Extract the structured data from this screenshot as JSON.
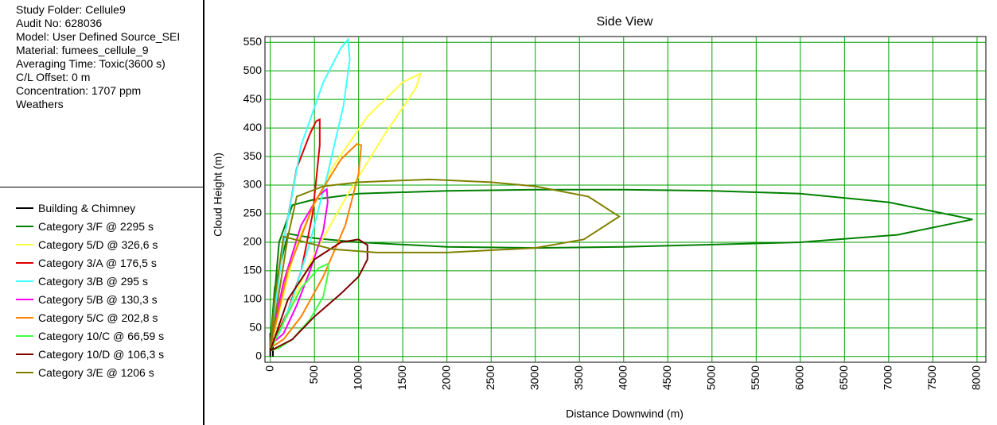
{
  "info": [
    "Study Folder: Cellule9",
    "Audit No: 628036",
    "Model: User Defined Source_SEI",
    "Material: fumees_cellule_9",
    "Averaging Time: Toxic(3600 s)",
    "C/L Offset: 0 m",
    "Concentration: 1707 ppm",
    "Weathers"
  ],
  "chart_data": {
    "type": "line",
    "title": "Side View",
    "x_label": "Distance Downwind (m)",
    "y_label": "Cloud Height (m)",
    "xlim": [
      -60,
      8100
    ],
    "ylim": [
      -10,
      560
    ],
    "xticks": [
      0,
      500,
      1000,
      1500,
      2000,
      2500,
      3000,
      3500,
      4000,
      4500,
      5000,
      5500,
      6000,
      6500,
      7000,
      7500,
      8000
    ],
    "yticks": [
      0,
      50,
      100,
      150,
      200,
      250,
      300,
      350,
      400,
      450,
      500,
      550
    ],
    "grid": true,
    "grid_color": "#00a000",
    "series": [
      {
        "name": "Building & Chimney",
        "color": "#000000",
        "x": [
          0,
          0,
          30,
          30
        ],
        "values": [
          0,
          40,
          40,
          0
        ]
      },
      {
        "name": "Category 3/F @ 2295 s",
        "color": "#008000",
        "x": [
          0,
          100,
          250,
          500,
          1000,
          2000,
          3000,
          4000,
          5000,
          6000,
          7000,
          7950,
          7100,
          6000,
          5000,
          4000,
          3000,
          2000,
          1000,
          500,
          200,
          50,
          0
        ],
        "values": [
          20,
          200,
          265,
          275,
          285,
          290,
          292,
          292,
          290,
          285,
          270,
          240,
          213,
          200,
          196,
          192,
          190,
          192,
          200,
          207,
          215,
          120,
          20
        ]
      },
      {
        "name": "Category 5/D @ 326,6 s",
        "color": "#ffff40",
        "x": [
          0,
          300,
          700,
          1100,
          1500,
          1700,
          1650,
          1300,
          900,
          500,
          200,
          0
        ],
        "values": [
          15,
          200,
          330,
          420,
          480,
          495,
          470,
          390,
          290,
          180,
          80,
          15
        ]
      },
      {
        "name": "Category 3/A @ 176,5 s",
        "color": "#e00000",
        "x": [
          0,
          150,
          300,
          450,
          520,
          560,
          560,
          480,
          350,
          200,
          80,
          0
        ],
        "values": [
          20,
          200,
          330,
          390,
          412,
          415,
          370,
          250,
          150,
          80,
          40,
          20
        ]
      },
      {
        "name": "Category 3/B @ 295 s",
        "color": "#40ffff",
        "x": [
          0,
          150,
          350,
          600,
          800,
          880,
          900,
          830,
          650,
          450,
          250,
          100,
          0
        ],
        "values": [
          20,
          200,
          370,
          480,
          540,
          555,
          520,
          440,
          320,
          200,
          100,
          40,
          20
        ]
      },
      {
        "name": "Category 5/B @ 130,3 s",
        "color": "#ff00ff",
        "x": [
          0,
          150,
          350,
          550,
          640,
          650,
          600,
          450,
          300,
          150,
          0
        ],
        "values": [
          20,
          130,
          230,
          282,
          293,
          270,
          220,
          150,
          90,
          40,
          20
        ]
      },
      {
        "name": "Category 5/C @ 202,8 s",
        "color": "#ff8000",
        "x": [
          0,
          200,
          500,
          800,
          980,
          1030,
          1000,
          850,
          600,
          350,
          150,
          0
        ],
        "values": [
          15,
          150,
          270,
          345,
          372,
          370,
          320,
          230,
          140,
          70,
          30,
          15
        ]
      },
      {
        "name": "Category 10/C @ 66,59 s",
        "color": "#40ff40",
        "x": [
          0,
          150,
          350,
          550,
          650,
          660,
          600,
          450,
          250,
          100,
          0
        ],
        "values": [
          10,
          60,
          120,
          155,
          162,
          150,
          105,
          65,
          30,
          15,
          10
        ]
      },
      {
        "name": "Category 10/D @ 106,3 s",
        "color": "#800000",
        "x": [
          0,
          200,
          500,
          800,
          1000,
          1100,
          1100,
          1000,
          800,
          500,
          250,
          0
        ],
        "values": [
          10,
          100,
          170,
          200,
          205,
          195,
          170,
          140,
          110,
          70,
          30,
          10
        ]
      },
      {
        "name": "Category 3/E @ 1206 s",
        "color": "#808000",
        "x": [
          0,
          200,
          300,
          600,
          1000,
          1800,
          2500,
          3000,
          3600,
          3950,
          3550,
          3000,
          2000,
          1200,
          700,
          400,
          150,
          50,
          0
        ],
        "values": [
          15,
          210,
          280,
          298,
          305,
          310,
          305,
          298,
          280,
          245,
          205,
          190,
          182,
          182,
          188,
          200,
          210,
          100,
          15
        ]
      }
    ]
  }
}
